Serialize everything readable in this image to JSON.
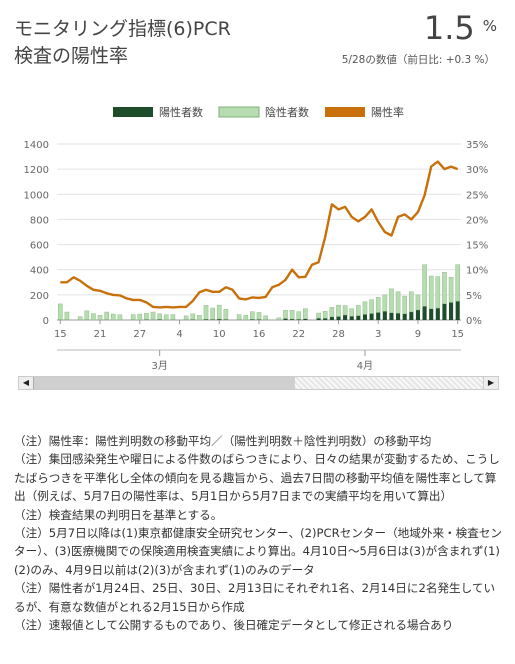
{
  "header": {
    "title_line1": "モニタリング指標(6)PCR",
    "title_line2": "検査の陽性率",
    "value": "1.5",
    "value_unit": "%",
    "subvalue": "5/28の数値（前日比: +0.3 %）"
  },
  "colors": {
    "positive": "#1e4d2b",
    "negative": "#b7dcb1",
    "rate": "#c8700a"
  },
  "chart_data": {
    "type": "bar",
    "legend": [
      "陽性者数",
      "陰性者数",
      "陽性率"
    ],
    "legend_position": "top",
    "x_tick_labels": [
      "15",
      "21",
      "27",
      "4",
      "10",
      "16",
      "22",
      "28",
      "3",
      "9",
      "15"
    ],
    "x_tick_index": [
      0,
      6,
      12,
      18,
      24,
      30,
      36,
      42,
      48,
      54,
      60
    ],
    "month_labels": [
      "3月",
      "4月"
    ],
    "month_index": [
      15,
      46
    ],
    "y_left_ticks": [
      "0",
      "200",
      "400",
      "600",
      "800",
      "1000",
      "1200",
      "1400"
    ],
    "y_right_ticks": [
      "0%",
      "5%",
      "10%",
      "15%",
      "20%",
      "25%",
      "30%",
      "35%"
    ],
    "ylim_left": [
      0,
      1400
    ],
    "ylim_right": [
      0,
      35
    ],
    "grid": true,
    "series": [
      {
        "name": "陽性者数",
        "values": [
          3,
          3,
          0,
          2,
          3,
          1,
          2,
          3,
          2,
          2,
          0,
          3,
          2,
          4,
          3,
          5,
          2,
          3,
          0,
          3,
          4,
          2,
          6,
          5,
          8,
          5,
          0,
          3,
          2,
          6,
          5,
          3,
          0,
          2,
          12,
          8,
          6,
          10,
          0,
          15,
          14,
          25,
          28,
          40,
          30,
          35,
          45,
          52,
          60,
          70,
          58,
          55,
          50,
          65,
          80,
          110,
          90,
          95,
          130,
          140,
          150
        ]
      },
      {
        "name": "陰性者数",
        "values": [
          125,
          60,
          0,
          25,
          70,
          50,
          35,
          60,
          45,
          40,
          0,
          40,
          45,
          50,
          60,
          45,
          40,
          40,
          0,
          30,
          45,
          35,
          110,
          90,
          110,
          80,
          0,
          40,
          35,
          60,
          55,
          30,
          0,
          15,
          65,
          70,
          60,
          80,
          0,
          40,
          55,
          75,
          90,
          75,
          60,
          80,
          100,
          110,
          120,
          130,
          190,
          170,
          140,
          160,
          120,
          330,
          260,
          250,
          250,
          200,
          290
        ]
      },
      {
        "name": "陽性率",
        "values": [
          7.5,
          7.5,
          8.5,
          7.8,
          6.8,
          6.0,
          5.8,
          5.3,
          5.0,
          4.9,
          4.3,
          4.0,
          4.0,
          3.5,
          2.6,
          2.5,
          2.6,
          2.5,
          2.6,
          2.6,
          3.8,
          5.5,
          6.0,
          5.6,
          5.6,
          6.5,
          6.0,
          4.3,
          4.1,
          4.5,
          4.4,
          4.6,
          6.5,
          7.0,
          8.0,
          10.0,
          8.5,
          8.6,
          11.0,
          11.5,
          16.5,
          23.0,
          22.0,
          22.5,
          20.5,
          19.6,
          20.5,
          22.0,
          19.5,
          17.5,
          16.8,
          20.5,
          21.0,
          20.0,
          21.5,
          24.8,
          30.5,
          31.5,
          30.0,
          30.5,
          30.0
        ]
      }
    ]
  },
  "scrollbar": {
    "left_arrow": "◀",
    "right_arrow": "▶"
  },
  "notes": [
    "（注）陽性率：陽性判明数の移動平均／（陽性判明数＋陰性判明数）の移動平均",
    "（注）集団感染発生や曜日による件数のばらつきにより、日々の結果が変動するため、こうしたばらつきを平準化し全体の傾向を見る趣旨から、過去7日間の移動平均値を陽性率として算出（例えば、5月7日の陽性率は、5月1日から5月7日までの実績平均を用いて算出）",
    "（注）検査結果の判明日を基準とする。",
    "（注）5月7日以降は(1)東京都健康安全研究センター、(2)PCRセンター（地域外来・検査センター）、(3)医療機関での保険適用検査実績により算出。4月10日～5月6日は(3)が含まれず(1)(2)のみ、4月9日以前は(2)(3)が含まれず(1)のみのデータ",
    "（注）陽性者が1月24日、25日、30日、2月13日にそれぞれ1名、2月14日に2名発生しているが、有意な数値がとれる2月15日から作成",
    "（注）速報値として公開するものであり、後日確定データとして修正される場合あり"
  ]
}
